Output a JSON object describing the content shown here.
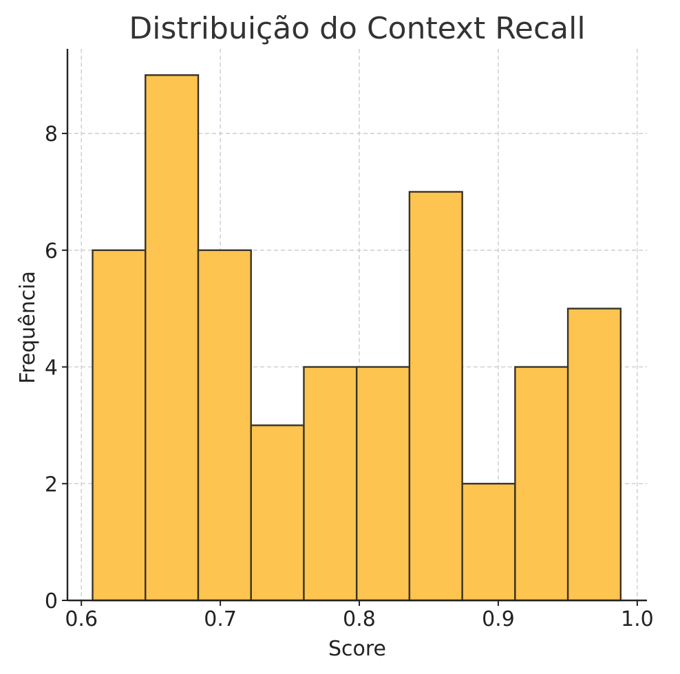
{
  "chart_data": {
    "type": "bar",
    "title": "Distribuição do Context Recall",
    "xlabel": "Score",
    "ylabel": "Frequência",
    "bin_edges": [
      0.6081,
      0.6461,
      0.6841,
      0.7221,
      0.7601,
      0.7981,
      0.8361,
      0.8741,
      0.9121,
      0.9501,
      0.9881
    ],
    "values": [
      6,
      9,
      6,
      3,
      4,
      4,
      7,
      2,
      4,
      5
    ],
    "xlim": [
      0.59,
      1.007
    ],
    "ylim": [
      0,
      9.45
    ],
    "xticks": [
      0.6,
      0.7,
      0.8,
      0.9,
      1.0
    ],
    "xtick_labels": [
      "0.6",
      "0.7",
      "0.8",
      "0.9",
      "1.0"
    ],
    "yticks": [
      0,
      2,
      4,
      6,
      8
    ],
    "ytick_labels": [
      "0",
      "2",
      "4",
      "6",
      "8"
    ],
    "grid": true,
    "bar_color": "#fdc44f",
    "edge_color": "#3a3226"
  }
}
